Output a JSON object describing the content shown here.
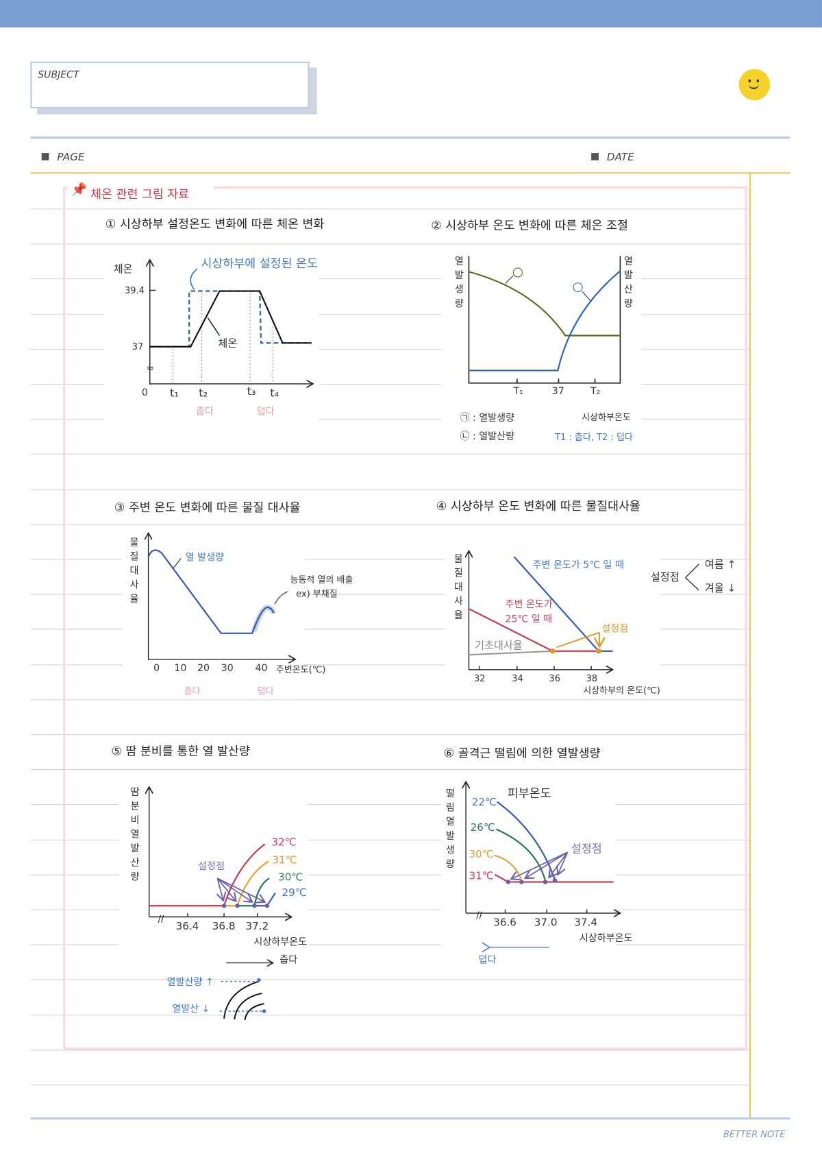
{
  "header": {
    "subject_label": "SUBJECT",
    "page_label": "PAGE",
    "date_label": "DATE",
    "footer_brand": "BETTER NOTE",
    "section_title": "체온 관련 그림 자료",
    "accent_bar": "#7a9fd2",
    "smiley_color": "#f5d22a"
  },
  "c1": {
    "title": "① 시상하부 설정온도 변화에 따른 체온 변화",
    "ylabel": "체온",
    "tick_high": "39.4",
    "tick_low": "37",
    "origin": "0",
    "t1": "t₁",
    "t2": "t₂",
    "t3": "t₃",
    "t4": "t₄",
    "cold": "춥다",
    "hot": "덥다",
    "set_label": "시상하부에 설정된 온도",
    "body_label": "체온"
  },
  "c2": {
    "title": "② 시상하부 온도 변화에 따른 체온 조절",
    "ylabel_left": "열발생량",
    "ylabel_right": "열발산량",
    "mark_a": "㉠",
    "mark_b": "㉡",
    "x_t1": "T₁",
    "x_37": "37",
    "x_t2": "T₂",
    "legend_a": "㉠ : 열발생량",
    "legend_b": "㉡ : 열발산량",
    "xlabel": "시상하부온도",
    "note": "T1 : 춥다, T2 : 덥다"
  },
  "c3": {
    "title": "③ 주변 온도 변화에 따른 물질 대사율",
    "ylabel": "물질대사율",
    "x_ticks": [
      "0",
      "10",
      "20",
      "30",
      "40"
    ],
    "xlabel": "주변온도(℃)",
    "curve_label": "열 발생량",
    "note1": "능동적 열의 배출",
    "note2": "ex) 부채질",
    "cold": "춥다",
    "hot": "덥다"
  },
  "c4": {
    "title": "④ 시상하부 온도 변화에 따른 물질대사율",
    "ylabel": "물질대사율",
    "x_ticks": [
      "32",
      "34",
      "36",
      "38"
    ],
    "xlabel": "시상하부의 온도(℃)",
    "blue_label": "주변 온도가 5℃ 일 때",
    "red_label1": "주변 온도가",
    "red_label2": "25℃ 일 때",
    "basal": "기초대사율",
    "setpoint": "설정점",
    "side_setpoint": "설정점",
    "summer": "여름 ↑",
    "winter": "겨울 ↓"
  },
  "c5": {
    "title": "⑤ 땀 분비를 통한 열 발산량",
    "ylabel": "땀분비열발산량",
    "x_ticks": [
      "36.4",
      "36.8",
      "37.2"
    ],
    "xlabel": "시상하부온도",
    "series": [
      "32℃",
      "31℃",
      "30℃",
      "29℃"
    ],
    "setpoint": "설정점",
    "arrow_label": "춥다",
    "up_label": "열발산량 ↑",
    "down_label": "열발산 ↓"
  },
  "c6": {
    "title": "⑥ 골격근 떨림에 의한 열발생량",
    "ylabel": "떨림열발생량",
    "x_ticks": [
      "36.6",
      "37.0",
      "37.4"
    ],
    "xlabel": "시상하부온도",
    "series": [
      "22℃",
      "26℃",
      "30℃",
      "31℃"
    ],
    "skin": "피부온도",
    "setpoint": "설정점",
    "arrow_label": "덥다"
  }
}
